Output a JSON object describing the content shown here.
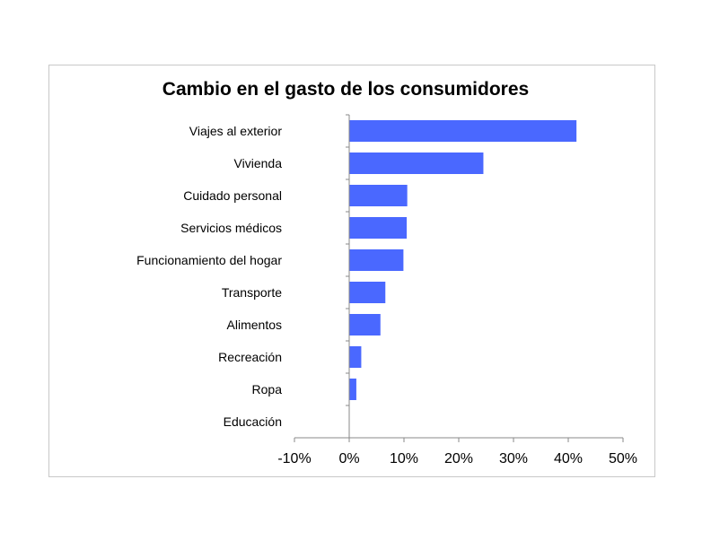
{
  "chart_data": {
    "type": "bar",
    "orientation": "horizontal",
    "title": "Cambio en el gasto de los consumidores",
    "xlabel": "",
    "ylabel": "",
    "categories": [
      "Viajes al exterior",
      "Vivienda",
      "Cuidado personal",
      "Servicios médicos",
      "Funcionamiento del hogar",
      "Transporte",
      "Alimentos",
      "Recreación",
      "Ropa",
      "Educación"
    ],
    "values": [
      41.5,
      24.5,
      10.6,
      10.5,
      9.9,
      6.6,
      5.7,
      2.2,
      1.3,
      0
    ],
    "xlim": [
      -10,
      50
    ],
    "xticks": [
      "-10%",
      "0%",
      "10%",
      "20%",
      "30%",
      "40%",
      "50%"
    ],
    "xtick_values": [
      -10,
      0,
      10,
      20,
      30,
      40,
      50
    ],
    "grid": false,
    "legend": "none",
    "bar_color": "#4a68ff"
  }
}
